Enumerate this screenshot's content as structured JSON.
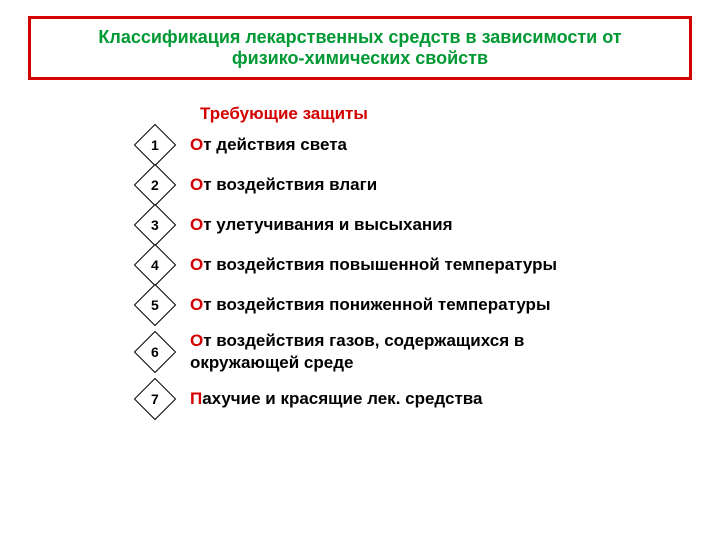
{
  "colors": {
    "red": "#d40000",
    "green": "#009933",
    "textBlack": "#000000"
  },
  "title": {
    "line1": "Классификация лекарственных средств в зависимости от",
    "line2": "физико-химических свойств",
    "fontsize": 18
  },
  "subtitle": {
    "text": "Требующие защиты",
    "fontsize": 17
  },
  "items": [
    {
      "num": "1",
      "first": "О",
      "rest": "т действия света"
    },
    {
      "num": "2",
      "first": "О",
      "rest": "т воздействия влаги"
    },
    {
      "num": "3",
      "first": "О",
      "rest": "т улетучивания и высыхания"
    },
    {
      "num": "4",
      "first": "О",
      "rest": "т воздействия повышенной температуры"
    },
    {
      "num": "5",
      "first": "О",
      "rest": "т воздействия пониженной температуры"
    },
    {
      "num": "6",
      "first": "О",
      "rest": "т воздействия газов, содержащихся в окружающей среде"
    },
    {
      "num": "7",
      "first": "П",
      "rest": "ахучие и красящие лек. средства"
    }
  ],
  "item_fontsize": 17
}
